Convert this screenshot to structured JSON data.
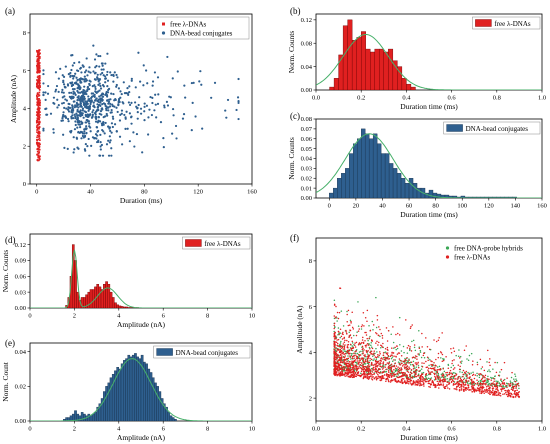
{
  "colors": {
    "red": "#e02020",
    "red_dark": "#6e0000",
    "blue": "#2e5f8f",
    "blue_dark": "#16314d",
    "green": "#3aa655",
    "fit": "#47b06a"
  },
  "chart_data": [
    {
      "id": "a",
      "panel_label": "(a)",
      "type": "scatter",
      "xlabel": "Duration (ms)",
      "ylabel": "Amplitude (nA)",
      "xlim": [
        -5,
        160
      ],
      "ylim": [
        0,
        9
      ],
      "xticks": [
        0,
        40,
        80,
        120,
        160
      ],
      "yticks": [
        0,
        2,
        4,
        6,
        8
      ],
      "legend_position": "top-right",
      "series": [
        {
          "name": "free λ-DNAs",
          "color": "#e02020",
          "marker": "square",
          "x_range": [
            0,
            2.5
          ],
          "y_range": [
            1.2,
            7.1
          ],
          "count": 320
        },
        {
          "name": "DNA-bead conjugates",
          "color": "#2e5f8f",
          "marker": "dot",
          "x_center": 30,
          "x_spread": 28,
          "x_range": [
            5,
            150
          ],
          "y_center": 4.3,
          "y_spread": 1.1,
          "y_range": [
            1.5,
            8.5
          ],
          "count": 750
        }
      ]
    },
    {
      "id": "b",
      "panel_label": "(b)",
      "type": "bar",
      "xlabel": "Duration time (ms)",
      "ylabel": "Norm. Counts",
      "xlim": [
        0,
        1.0
      ],
      "ylim": [
        0,
        0.13
      ],
      "xticks": [
        0.0,
        0.2,
        0.4,
        0.6,
        0.8,
        1.0
      ],
      "yticks": [
        0.0,
        0.04,
        0.08,
        0.12
      ],
      "legend_position": "top-right",
      "series": [
        {
          "name": "free λ-DNAs",
          "color": "#e02020",
          "bin_start": 0.06,
          "bin_width": 0.02,
          "values": [
            0.005,
            0.02,
            0.06,
            0.11,
            0.12,
            0.085,
            0.09,
            0.1,
            0.07,
            0.065,
            0.07,
            0.07,
            0.065,
            0.07,
            0.05,
            0.04,
            0.02,
            0.01,
            0.005
          ]
        }
      ],
      "fit": {
        "mu": 0.22,
        "sigma": 0.1,
        "amp": 0.095
      }
    },
    {
      "id": "c",
      "panel_label": "(c)",
      "type": "bar",
      "xlabel": "Duration time (ms)",
      "ylabel": "Norm. Counts",
      "xlim": [
        -10,
        160
      ],
      "ylim": [
        0,
        0.08
      ],
      "xticks": [
        0,
        20,
        40,
        60,
        80,
        100,
        120,
        140,
        160
      ],
      "yticks": [
        0.0,
        0.01,
        0.02,
        0.03,
        0.04,
        0.05,
        0.06,
        0.07,
        0.08
      ],
      "legend_position": "top-right",
      "series": [
        {
          "name": "DNA-bead conjugates",
          "color": "#2e5f8f",
          "bin_start": 0,
          "bin_width": 3,
          "values": [
            0.005,
            0.01,
            0.02,
            0.025,
            0.03,
            0.045,
            0.055,
            0.06,
            0.07,
            0.065,
            0.06,
            0.065,
            0.055,
            0.045,
            0.045,
            0.035,
            0.03,
            0.025,
            0.02,
            0.015,
            0.02,
            0.015,
            0.01,
            0.01,
            0.005,
            0.008,
            0.005,
            0.004,
            0.003,
            0.003,
            0.002,
            0.002,
            0.001,
            0.002,
            0.001,
            0.001,
            0.001,
            0.001,
            0.001,
            0.001,
            0.001,
            0.001,
            0.001,
            0.001,
            0.001,
            0.001,
            0.001
          ]
        }
      ],
      "fit": {
        "mu": 30,
        "sigma": 18,
        "amp": 0.065
      }
    },
    {
      "id": "d",
      "panel_label": "(d)",
      "type": "bar",
      "xlabel": "Amplitude (nA)",
      "ylabel": "Norm. Counts",
      "xlim": [
        0,
        10
      ],
      "ylim": [
        0,
        0.14
      ],
      "xticks": [
        0,
        2,
        4,
        6,
        8,
        10
      ],
      "yticks": [
        0.0,
        0.03,
        0.06,
        0.09,
        0.12
      ],
      "legend_position": "top-right",
      "series": [
        {
          "name": "free λ-DNAs",
          "color": "#e02020",
          "bin_start": 1.6,
          "bin_width": 0.1,
          "values": [
            0.005,
            0.02,
            0.06,
            0.12,
            0.09,
            0.03,
            0.015,
            0.02,
            0.02,
            0.025,
            0.03,
            0.035,
            0.035,
            0.04,
            0.045,
            0.04,
            0.035,
            0.045,
            0.05,
            0.045,
            0.03,
            0.02,
            0.01,
            0.006,
            0.004,
            0.003,
            0.002,
            0.002,
            0.001,
            0.001,
            0.001,
            0.001,
            0.001
          ]
        }
      ],
      "fit": {
        "peaks": [
          {
            "mu": 2.0,
            "sigma": 0.12,
            "amp": 0.11
          },
          {
            "mu": 3.5,
            "sigma": 0.45,
            "amp": 0.038
          }
        ]
      }
    },
    {
      "id": "e",
      "panel_label": "(e)",
      "type": "bar",
      "xlabel": "Amplitude (nA)",
      "ylabel": "Norm. Count",
      "xlim": [
        0,
        10
      ],
      "ylim": [
        0,
        0.045
      ],
      "xticks": [
        0,
        2,
        4,
        6,
        8,
        10
      ],
      "yticks": [
        0.0,
        0.02,
        0.04
      ],
      "legend_position": "top-right",
      "series": [
        {
          "name": "DNA-bead conjugates",
          "color": "#2e5f8f",
          "bin_start": 1.5,
          "bin_width": 0.1,
          "values": [
            0.001,
            0.002,
            0.002,
            0.003,
            0.004,
            0.006,
            0.004,
            0.003,
            0.005,
            0.004,
            0.003,
            0.004,
            0.003,
            0.004,
            0.005,
            0.008,
            0.01,
            0.013,
            0.017,
            0.02,
            0.022,
            0.025,
            0.027,
            0.029,
            0.031,
            0.03,
            0.033,
            0.035,
            0.036,
            0.038,
            0.037,
            0.038,
            0.039,
            0.037,
            0.036,
            0.038,
            0.034,
            0.033,
            0.03,
            0.028,
            0.025,
            0.022,
            0.02,
            0.017,
            0.013,
            0.01,
            0.008,
            0.005,
            0.003,
            0.002,
            0.001
          ]
        }
      ],
      "fit": {
        "mu": 4.6,
        "sigma": 0.85,
        "amp": 0.036
      }
    },
    {
      "id": "f",
      "panel_label": "(f)",
      "type": "scatter",
      "xlabel": "Duration time (ms)",
      "ylabel": "Amplitude (nA)",
      "xlim": [
        0,
        1.0
      ],
      "ylim": [
        1,
        9
      ],
      "xticks": [
        0.0,
        0.2,
        0.4,
        0.6,
        0.8,
        1.0
      ],
      "yticks": [
        2,
        4,
        6,
        8
      ],
      "legend_position": "top-right",
      "series": [
        {
          "name": "free DNA-probe hybrids",
          "color": "#3aa655",
          "marker": "dot",
          "x_range": [
            0.08,
            0.9
          ],
          "y_range": [
            2.0,
            7.0
          ],
          "count": 700
        },
        {
          "name": "free λ-DNAs",
          "color": "#e02020",
          "marker": "dot",
          "x_range": [
            0.08,
            0.9
          ],
          "y_range": [
            1.6,
            7.5
          ],
          "count": 1800
        }
      ]
    }
  ]
}
